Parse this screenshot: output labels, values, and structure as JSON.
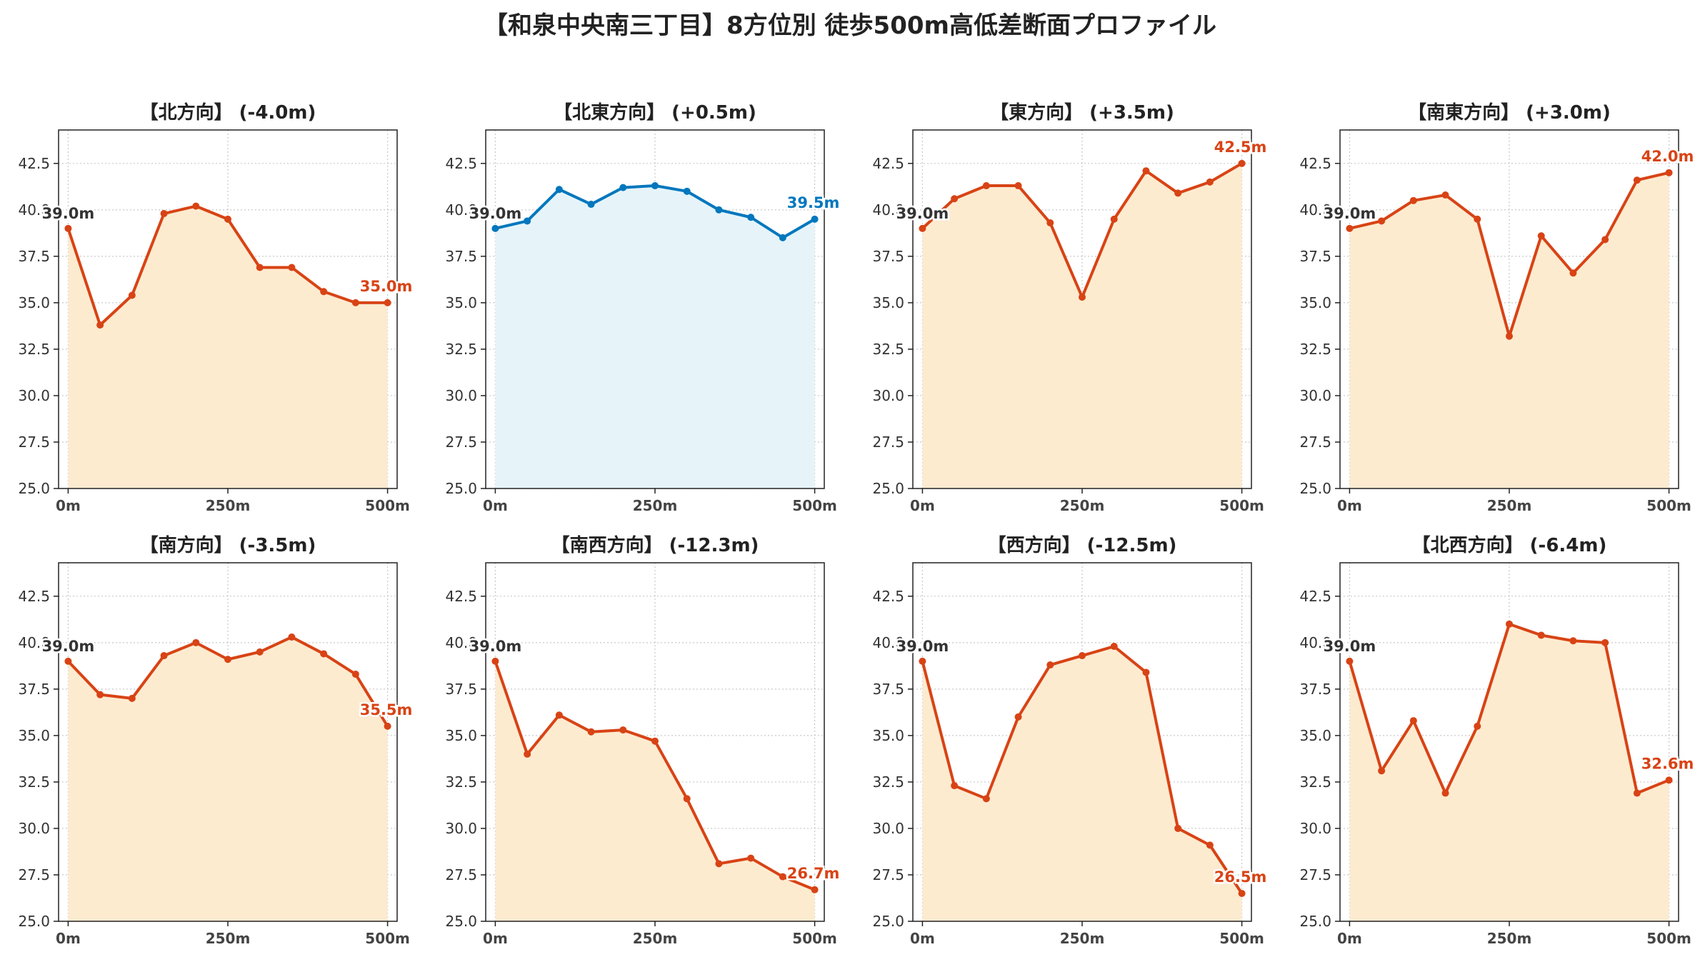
{
  "figure": {
    "title": "【和泉中央南三丁目】8方位別 徒歩500m高低差断面プロファイル"
  },
  "colors": {
    "down_line": "#d84315",
    "down_fill": "#fdebd0",
    "up_line": "#0277bd",
    "up_fill": "#e6f4fa",
    "start_label": "#333333",
    "grid": "#c8c8c8"
  },
  "chart_data": [
    {
      "type": "area",
      "title": "【北方向】 (-4.0m)",
      "style": "down",
      "x": [
        0,
        50,
        100,
        150,
        200,
        250,
        300,
        350,
        400,
        450,
        500
      ],
      "values": [
        39.0,
        33.8,
        35.4,
        39.8,
        40.2,
        39.5,
        36.9,
        36.9,
        35.6,
        35.0,
        35.0
      ],
      "start_label": "39.0m",
      "end_label": "35.0m",
      "ylim": [
        25.0,
        44.3
      ],
      "xlim": [
        -15,
        515
      ],
      "yticks": [
        "25.0",
        "27.5",
        "30.0",
        "32.5",
        "35.0",
        "37.5",
        "40.0",
        "42.5"
      ],
      "xticks": [
        "0m",
        "250m",
        "500m"
      ],
      "grid": true
    },
    {
      "type": "area",
      "title": "【北東方向】 (+0.5m)",
      "style": "up",
      "x": [
        0,
        50,
        100,
        150,
        200,
        250,
        300,
        350,
        400,
        450,
        500
      ],
      "values": [
        39.0,
        39.4,
        41.1,
        40.3,
        41.2,
        41.3,
        41.0,
        40.0,
        39.6,
        38.5,
        39.5
      ],
      "start_label": "39.0m",
      "end_label": "39.5m",
      "ylim": [
        25.0,
        44.3
      ],
      "xlim": [
        -15,
        515
      ],
      "yticks": [
        "25.0",
        "27.5",
        "30.0",
        "32.5",
        "35.0",
        "37.5",
        "40.0",
        "42.5"
      ],
      "xticks": [
        "0m",
        "250m",
        "500m"
      ],
      "grid": true
    },
    {
      "type": "area",
      "title": "【東方向】 (+3.5m)",
      "style": "down",
      "x": [
        0,
        50,
        100,
        150,
        200,
        250,
        300,
        350,
        400,
        450,
        500
      ],
      "values": [
        39.0,
        40.6,
        41.3,
        41.3,
        39.3,
        35.3,
        39.5,
        42.1,
        40.9,
        41.5,
        42.5
      ],
      "start_label": "39.0m",
      "end_label": "42.5m",
      "ylim": [
        25.0,
        44.3
      ],
      "xlim": [
        -15,
        515
      ],
      "yticks": [
        "25.0",
        "27.5",
        "30.0",
        "32.5",
        "35.0",
        "37.5",
        "40.0",
        "42.5"
      ],
      "xticks": [
        "0m",
        "250m",
        "500m"
      ],
      "grid": true
    },
    {
      "type": "area",
      "title": "【南東方向】 (+3.0m)",
      "style": "down",
      "x": [
        0,
        50,
        100,
        150,
        200,
        250,
        300,
        350,
        400,
        450,
        500
      ],
      "values": [
        39.0,
        39.4,
        40.5,
        40.8,
        39.5,
        33.2,
        38.6,
        36.6,
        38.4,
        41.6,
        42.0
      ],
      "start_label": "39.0m",
      "end_label": "42.0m",
      "ylim": [
        25.0,
        44.3
      ],
      "xlim": [
        -15,
        515
      ],
      "yticks": [
        "25.0",
        "27.5",
        "30.0",
        "32.5",
        "35.0",
        "37.5",
        "40.0",
        "42.5"
      ],
      "xticks": [
        "0m",
        "250m",
        "500m"
      ],
      "grid": true
    },
    {
      "type": "area",
      "title": "【南方向】 (-3.5m)",
      "style": "down",
      "x": [
        0,
        50,
        100,
        150,
        200,
        250,
        300,
        350,
        400,
        450,
        500
      ],
      "values": [
        39.0,
        37.2,
        37.0,
        39.3,
        40.0,
        39.1,
        39.5,
        40.3,
        39.4,
        38.3,
        35.5
      ],
      "start_label": "39.0m",
      "end_label": "35.5m",
      "ylim": [
        25.0,
        44.3
      ],
      "xlim": [
        -15,
        515
      ],
      "yticks": [
        "25.0",
        "27.5",
        "30.0",
        "32.5",
        "35.0",
        "37.5",
        "40.0",
        "42.5"
      ],
      "xticks": [
        "0m",
        "250m",
        "500m"
      ],
      "grid": true
    },
    {
      "type": "area",
      "title": "【南西方向】 (-12.3m)",
      "style": "down",
      "x": [
        0,
        50,
        100,
        150,
        200,
        250,
        300,
        350,
        400,
        450,
        500
      ],
      "values": [
        39.0,
        34.0,
        36.1,
        35.2,
        35.3,
        34.7,
        31.6,
        28.1,
        28.4,
        27.4,
        26.7
      ],
      "start_label": "39.0m",
      "end_label": "26.7m",
      "ylim": [
        25.0,
        44.3
      ],
      "xlim": [
        -15,
        515
      ],
      "yticks": [
        "25.0",
        "27.5",
        "30.0",
        "32.5",
        "35.0",
        "37.5",
        "40.0",
        "42.5"
      ],
      "xticks": [
        "0m",
        "250m",
        "500m"
      ],
      "grid": true
    },
    {
      "type": "area",
      "title": "【西方向】 (-12.5m)",
      "style": "down",
      "x": [
        0,
        50,
        100,
        150,
        200,
        250,
        300,
        350,
        400,
        450,
        500
      ],
      "values": [
        39.0,
        32.3,
        31.6,
        36.0,
        38.8,
        39.3,
        39.8,
        38.4,
        30.0,
        29.1,
        26.5
      ],
      "start_label": "39.0m",
      "end_label": "26.5m",
      "ylim": [
        25.0,
        44.3
      ],
      "xlim": [
        -15,
        515
      ],
      "yticks": [
        "25.0",
        "27.5",
        "30.0",
        "32.5",
        "35.0",
        "37.5",
        "40.0",
        "42.5"
      ],
      "xticks": [
        "0m",
        "250m",
        "500m"
      ],
      "grid": true
    },
    {
      "type": "area",
      "title": "【北西方向】 (-6.4m)",
      "style": "down",
      "x": [
        0,
        50,
        100,
        150,
        200,
        250,
        300,
        350,
        400,
        450,
        500
      ],
      "values": [
        39.0,
        33.1,
        35.8,
        31.9,
        35.5,
        41.0,
        40.4,
        40.1,
        40.0,
        31.9,
        32.6
      ],
      "start_label": "39.0m",
      "end_label": "32.6m",
      "ylim": [
        25.0,
        44.3
      ],
      "xlim": [
        -15,
        515
      ],
      "yticks": [
        "25.0",
        "27.5",
        "30.0",
        "32.5",
        "35.0",
        "37.5",
        "40.0",
        "42.5"
      ],
      "xticks": [
        "0m",
        "250m",
        "500m"
      ],
      "grid": true
    }
  ]
}
